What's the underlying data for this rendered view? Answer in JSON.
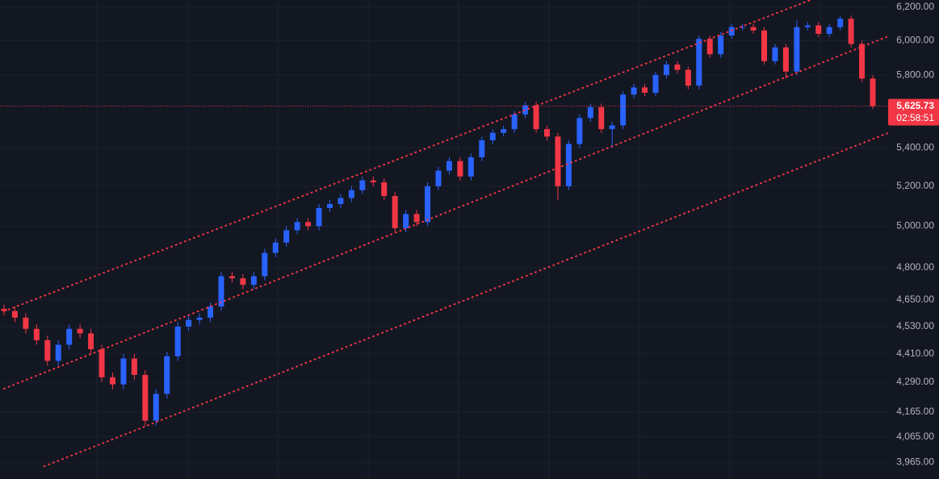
{
  "chart_data": {
    "type": "candlestick",
    "y_scale": "log",
    "grid": true,
    "up_color": "#2962ff",
    "down_color": "#f23645",
    "ylim": [
      3900,
      6244
    ],
    "yticks": [
      {
        "value": 6200,
        "label": "6,200.00"
      },
      {
        "value": 6000,
        "label": "6,000.00"
      },
      {
        "value": 5800,
        "label": "5,800.00"
      },
      {
        "value": 5400,
        "label": "5,400.00"
      },
      {
        "value": 5200,
        "label": "5,200.00"
      },
      {
        "value": 5000,
        "label": "5,000.00"
      },
      {
        "value": 4800,
        "label": "4,800.00"
      },
      {
        "value": 4650,
        "label": "4,650.00"
      },
      {
        "value": 4530,
        "label": "4,530.00"
      },
      {
        "value": 4410,
        "label": "4,410.00"
      },
      {
        "value": 4290,
        "label": "4,290.00"
      },
      {
        "value": 4165,
        "label": "4,165.00"
      },
      {
        "value": 4065,
        "label": "4,065.00"
      },
      {
        "value": 3965,
        "label": "3,965.00"
      }
    ],
    "open": [
      4610,
      4600,
      4570,
      4520,
      4470,
      4380,
      4450,
      4520,
      4500,
      4430,
      4310,
      4280,
      4390,
      4320,
      4130,
      4240,
      4400,
      4530,
      4560,
      4570,
      4620,
      4760,
      4750,
      4720,
      4760,
      4870,
      4920,
      4980,
      5020,
      5000,
      5090,
      5110,
      5140,
      5180,
      5230,
      5220,
      5150,
      4990,
      5060,
      5020,
      5200,
      5280,
      5330,
      5250,
      5350,
      5440,
      5480,
      5500,
      5580,
      5630,
      5500,
      5460,
      5200,
      5420,
      5560,
      5620,
      5500,
      5520,
      5690,
      5730,
      5700,
      5800,
      5860,
      5830,
      5740,
      6010,
      5920,
      6030,
      6080,
      6080,
      6060,
      5880,
      5960,
      5820,
      6080,
      6090,
      6040,
      6080,
      6130,
      5980,
      5780
    ],
    "high": [
      4630,
      4620,
      4590,
      4540,
      4490,
      4470,
      4540,
      4540,
      4520,
      4450,
      4330,
      4410,
      4410,
      4340,
      4260,
      4420,
      4550,
      4580,
      4590,
      4640,
      4780,
      4780,
      4770,
      4780,
      4890,
      4940,
      5000,
      5040,
      5040,
      5110,
      5130,
      5160,
      5200,
      5250,
      5250,
      5240,
      5170,
      5080,
      5080,
      5220,
      5300,
      5350,
      5350,
      5370,
      5460,
      5500,
      5520,
      5600,
      5650,
      5650,
      5520,
      5480,
      5440,
      5580,
      5640,
      5640,
      5540,
      5710,
      5750,
      5750,
      5820,
      5880,
      5880,
      5850,
      6030,
      6030,
      6050,
      6100,
      6100,
      6100,
      6080,
      5980,
      5980,
      6120,
      6110,
      6110,
      6100,
      6150,
      6150,
      6000,
      5800
    ],
    "low": [
      4580,
      4550,
      4500,
      4450,
      4360,
      4360,
      4430,
      4480,
      4410,
      4290,
      4260,
      4260,
      4300,
      4110,
      4110,
      4220,
      4380,
      4510,
      4540,
      4550,
      4600,
      4730,
      4700,
      4700,
      4740,
      4850,
      4900,
      4960,
      4980,
      4980,
      5070,
      5090,
      5120,
      5160,
      5200,
      5130,
      4970,
      4970,
      5000,
      5000,
      5180,
      5260,
      5230,
      5230,
      5330,
      5420,
      5460,
      5480,
      5560,
      5480,
      5440,
      5130,
      5180,
      5400,
      5540,
      5480,
      5400,
      5500,
      5670,
      5680,
      5680,
      5780,
      5810,
      5720,
      5720,
      5900,
      5900,
      6010,
      6060,
      6040,
      5860,
      5860,
      5780,
      5800,
      6060,
      6020,
      6020,
      6060,
      5960,
      5760,
      5610
    ],
    "close": [
      4600,
      4570,
      4520,
      4470,
      4380,
      4450,
      4520,
      4500,
      4430,
      4310,
      4280,
      4390,
      4320,
      4130,
      4240,
      4400,
      4530,
      4560,
      4570,
      4620,
      4760,
      4750,
      4720,
      4760,
      4870,
      4920,
      4980,
      5020,
      5000,
      5090,
      5110,
      5140,
      5180,
      5230,
      5220,
      5150,
      4990,
      5060,
      5020,
      5200,
      5280,
      5330,
      5250,
      5350,
      5440,
      5480,
      5500,
      5580,
      5630,
      5500,
      5460,
      5200,
      5420,
      5560,
      5620,
      5500,
      5520,
      5690,
      5730,
      5700,
      5800,
      5860,
      5830,
      5740,
      6010,
      5920,
      6030,
      6080,
      6080,
      6060,
      5880,
      5960,
      5820,
      6080,
      6090,
      6040,
      6080,
      6130,
      5980,
      5780,
      5625.73
    ],
    "trendlines": [
      {
        "color": "#f23645",
        "x": [
          0,
          81.4
        ],
        "values": [
          4599,
          6430
        ]
      },
      {
        "color": "#f23645",
        "x": [
          0,
          81.4
        ],
        "values": [
          4262,
          6025
        ]
      },
      {
        "color": "#f23645",
        "x": [
          3.7,
          81.4
        ],
        "values": [
          3949,
          5479
        ]
      }
    ],
    "last_price": {
      "value": 5625.73,
      "label": "5,625.73"
    },
    "countdown": "02:58:51"
  }
}
